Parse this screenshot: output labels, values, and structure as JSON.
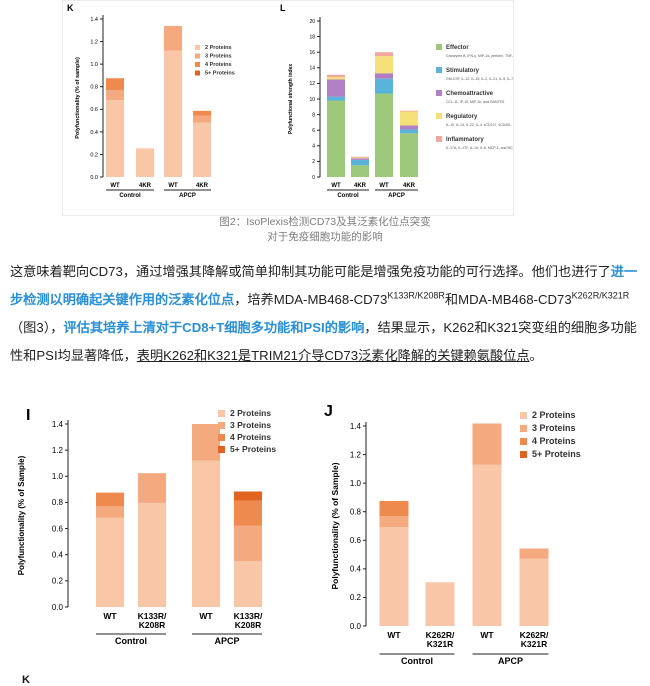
{
  "colors": {
    "p2": "#f9c6a8",
    "p3": "#f4a97f",
    "p4": "#ee8a4e",
    "p5": "#e0631f",
    "effector": "#9ec97c",
    "stimulatory": "#5ab3d9",
    "chemo": "#b07fc4",
    "regulatory": "#f6e07a",
    "inflammatory": "#f2a6a0"
  },
  "caption": {
    "line1": "图2：IsoPlexis检测CD73及其泛素化位点突变",
    "line2": "对于免疫细胞功能的影响"
  },
  "text": {
    "p1": "这意味着靶向CD73，通过增强其降解或简单抑制其功能可能是增强免疫功能的可行选择。他们也进行了",
    "hl1": "进一步检测以明确起关键作用的泛素化位点",
    "p2": "，培养MDA-MB468-CD73",
    "sup1": "K133R/K208R",
    "p3": "和MDA-MB468-CD73",
    "sup2": "K262R/K321R",
    "p4": "（图3），",
    "hl2": "评估其培养上清对于CD8+T细胞多功能和PSI的影响",
    "p5": "，结果显示，K262和K321突变组的细胞多功能性和PSI均显著降低，",
    "ul": "表明K262和K321是TRIM21介导CD73泛素化降解的关键赖氨酸位点",
    "p6": "。"
  },
  "bottom_label": "K",
  "chart_data": [
    {
      "id": "K",
      "type": "bar",
      "panel_label": "K",
      "ylabel": "Polyfunctionality (% of sample)",
      "ylim": [
        0,
        1.6
      ],
      "yticks": [
        "0.0",
        "0.2",
        "0.4",
        "0.6",
        "0.8",
        "1.0",
        "1.2",
        "1.4"
      ],
      "categories": [
        "WT",
        "4KR",
        "WT",
        "4KR"
      ],
      "groups": [
        "Control",
        "APCP"
      ],
      "legend": [
        "2 Proteins",
        "3 Proteins",
        "4 Proteins",
        "5+ Proteins"
      ],
      "series": [
        {
          "name": "2 Proteins",
          "values": [
            0.78,
            0.29,
            1.28,
            0.55
          ]
        },
        {
          "name": "3 Proteins",
          "values": [
            0.1,
            0.0,
            0.25,
            0.07
          ]
        },
        {
          "name": "4 Proteins",
          "values": [
            0.12,
            0.0,
            0.0,
            0.05
          ]
        },
        {
          "name": "5+ Proteins",
          "values": [
            0.0,
            0.0,
            0.0,
            0.0
          ]
        }
      ]
    },
    {
      "id": "L",
      "type": "bar",
      "panel_label": "L",
      "ylabel": "Polyfunctional strength index",
      "ylim": [
        0,
        20
      ],
      "yticks": [
        "0",
        "2",
        "4",
        "6",
        "8",
        "10",
        "12",
        "14",
        "16",
        "18",
        "20"
      ],
      "categories": [
        "WT",
        "4KR",
        "WT",
        "4KR"
      ],
      "groups": [
        "Control",
        "APCP"
      ],
      "legend": [
        {
          "name": "Effector",
          "desc": "Granzyme B, IFN-γ, MIP-1α, perforin, TNF-α, and TNF-β"
        },
        {
          "name": "Stimulatory",
          "desc": "GM-CSF, IL-12, IL-15, IL-2, IL-21, IL-5, IL-7, IL-8, and IL-9"
        },
        {
          "name": "Chemoattractive",
          "desc": "CCL-11, IP-10, MIP-1b, and RANTES"
        },
        {
          "name": "Regulatory",
          "desc": "IL-10, IL-13, IL-22, IL-4, sCD137, sCD40L, and TGF-β1"
        },
        {
          "name": "Inflammatory",
          "desc": "IL-17A, IL-17F, IL-1b, IL-6, MCP-1, and MCP-4"
        }
      ],
      "series": [
        {
          "name": "Effector",
          "values": [
            9.8,
            1.5,
            10.7,
            5.6
          ]
        },
        {
          "name": "Stimulatory",
          "values": [
            0.5,
            0.7,
            1.9,
            0.5
          ]
        },
        {
          "name": "Chemoattractive",
          "values": [
            2.2,
            0.2,
            0.7,
            0.5
          ]
        },
        {
          "name": "Regulatory",
          "values": [
            0.3,
            0.1,
            2.2,
            1.8
          ]
        },
        {
          "name": "Inflammatory",
          "values": [
            0.3,
            0.1,
            0.5,
            0.1
          ]
        }
      ]
    },
    {
      "id": "I",
      "type": "bar",
      "panel_label": "I",
      "ylabel": "Polyfunctionality (% of Sample)",
      "ylim": [
        0,
        1.6
      ],
      "yticks": [
        "0.0",
        "0.2",
        "0.4",
        "0.6",
        "0.8",
        "1.0",
        "1.2",
        "1.4"
      ],
      "categories": [
        "WT",
        "K133R/\nK208R",
        "WT",
        "K133R/\nK208R"
      ],
      "groups": [
        "Control",
        "APCP"
      ],
      "legend": [
        "2 Proteins",
        "3 Proteins",
        "4 Proteins",
        "5+ Proteins"
      ],
      "series": [
        {
          "name": "2 Proteins",
          "values": [
            0.78,
            0.91,
            1.28,
            0.4
          ]
        },
        {
          "name": "3 Proteins",
          "values": [
            0.1,
            0.26,
            0.32,
            0.31
          ]
        },
        {
          "name": "4 Proteins",
          "values": [
            0.12,
            0.0,
            0.0,
            0.22
          ]
        },
        {
          "name": "5+ Proteins",
          "values": [
            0.0,
            0.0,
            0.0,
            0.08
          ]
        }
      ]
    },
    {
      "id": "J",
      "type": "bar",
      "panel_label": "J",
      "ylabel": "Polyfunctionality (% of Sample)",
      "ylim": [
        0,
        1.6
      ],
      "yticks": [
        "0.0",
        "0.2",
        "0.4",
        "0.6",
        "0.8",
        "1.0",
        "1.2",
        "1.4"
      ],
      "categories": [
        "WT",
        "K262R/\nK321R",
        "WT",
        "K262R/\nK321R"
      ],
      "groups": [
        "Control",
        "APCP"
      ],
      "legend": [
        "2 Proteins",
        "3 Proteins",
        "4 Proteins",
        "5+ Proteins"
      ],
      "series": [
        {
          "name": "2 Proteins",
          "values": [
            0.79,
            0.35,
            1.29,
            0.54
          ]
        },
        {
          "name": "3 Proteins",
          "values": [
            0.09,
            0.0,
            0.33,
            0.08
          ]
        },
        {
          "name": "4 Proteins",
          "values": [
            0.12,
            0.0,
            0.0,
            0.0
          ]
        },
        {
          "name": "5+ Proteins",
          "values": [
            0.0,
            0.0,
            0.0,
            0.0
          ]
        }
      ]
    }
  ]
}
